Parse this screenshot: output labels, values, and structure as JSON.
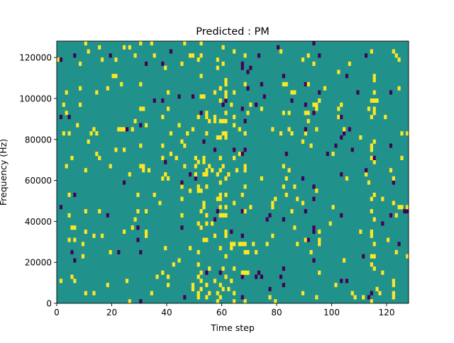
{
  "chart_data": {
    "type": "heatmap",
    "title": "Predicted : PM",
    "xlabel": "Time step",
    "ylabel": "Frequency (Hz)",
    "xlim": [
      0,
      128
    ],
    "ylim": [
      0,
      128000
    ],
    "xticks": [
      0,
      20,
      40,
      60,
      80,
      100,
      120
    ],
    "yticks": [
      0,
      20000,
      40000,
      60000,
      80000,
      100000,
      120000
    ],
    "xtick_labels": [
      "0",
      "20",
      "40",
      "60",
      "80",
      "100",
      "120"
    ],
    "ytick_labels": [
      "0",
      "20000",
      "40000",
      "60000",
      "80000",
      "100000",
      "120000"
    ],
    "rows": 64,
    "cols": 128,
    "colors": {
      "background": "#21918c",
      "high": "#fde725",
      "low": "#440154"
    },
    "seed": 20240611,
    "density": {
      "high_base": 0.035,
      "low_base": 0.012,
      "hot_columns": [
        51,
        52,
        53,
        54,
        58,
        59,
        60,
        61,
        62,
        64,
        68,
        114,
        115
      ],
      "hot_column_high": 0.16,
      "dark_columns": [
        67,
        68,
        69,
        82,
        90,
        93,
        103,
        115,
        121
      ],
      "dark_column_low": 0.06
    },
    "grid": false,
    "legend": false
  }
}
